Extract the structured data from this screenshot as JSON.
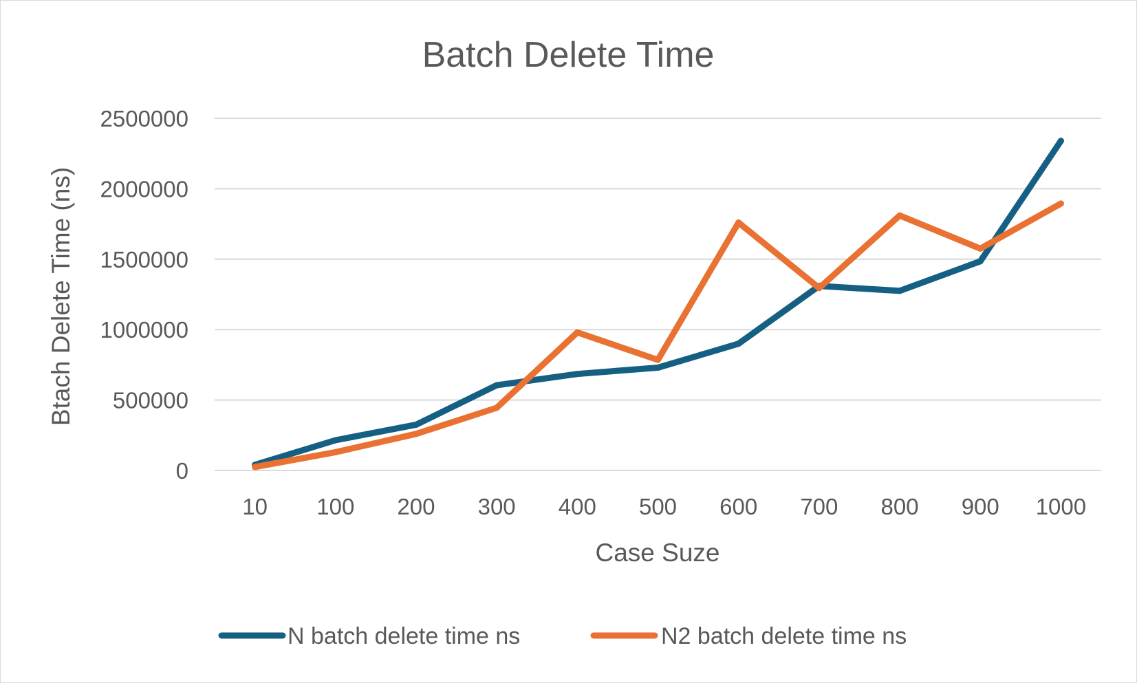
{
  "chart_data": {
    "type": "line",
    "title": "Batch Delete Time",
    "xlabel": "Case Suze",
    "ylabel": "Btach Delete Time (ns)",
    "categories": [
      "10",
      "100",
      "200",
      "300",
      "400",
      "500",
      "600",
      "700",
      "800",
      "900",
      "1000"
    ],
    "yticks": [
      "0",
      "500000",
      "1000000",
      "1500000",
      "2000000",
      "2500000"
    ],
    "ylim": [
      0,
      2500000
    ],
    "grid": true,
    "legend_position": "bottom",
    "series": [
      {
        "name": "N batch delete time ns",
        "color": "#156082",
        "values": [
          40000,
          215000,
          325000,
          605000,
          685000,
          730000,
          900000,
          1310000,
          1275000,
          1485000,
          2340000
        ]
      },
      {
        "name": "N2 batch delete time ns",
        "color": "#e97132",
        "values": [
          25000,
          130000,
          260000,
          445000,
          980000,
          785000,
          1760000,
          1295000,
          1810000,
          1575000,
          1895000
        ]
      }
    ]
  }
}
